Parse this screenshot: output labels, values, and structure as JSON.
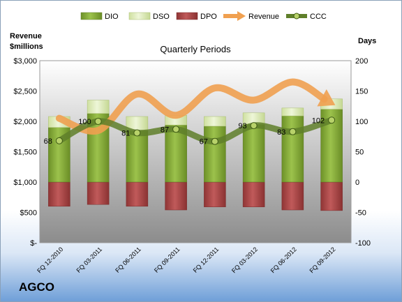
{
  "company": "AGCO",
  "chart_data": {
    "type": "bar",
    "title": "Quarterly Periods",
    "left_axis_title": [
      "Revenue",
      "$millions"
    ],
    "right_axis_title": "Days",
    "categories": [
      "FQ 12-2010",
      "FQ 03-2011",
      "FQ 06-2011",
      "FQ 09-2011",
      "FQ 12-2011",
      "FQ 03-2012",
      "FQ 06-2012",
      "FQ 09-2012"
    ],
    "left_ticks": [
      "$-",
      "$500",
      "$1,000",
      "$1,500",
      "$2,000",
      "$2,500",
      "$3,000"
    ],
    "right_ticks": [
      "-100",
      "-50",
      "0",
      "50",
      "100",
      "150",
      "200"
    ],
    "ylim_days": [
      -100,
      200
    ],
    "ylim_revenue": [
      0,
      3000
    ],
    "series": [
      {
        "name": "DIO",
        "axis": "days",
        "values": [
          90,
          113,
          85,
          94,
          92,
          95,
          109,
          120
        ]
      },
      {
        "name": "DSO",
        "axis": "days",
        "values": [
          18,
          22,
          23,
          16,
          16,
          19,
          13,
          17
        ]
      },
      {
        "name": "DPO",
        "axis": "days",
        "values": [
          -40,
          -37,
          -40,
          -46,
          -41,
          -41,
          -46,
          -47
        ]
      },
      {
        "name": "Revenue",
        "axis": "revenue",
        "values": [
          2050,
          1850,
          2450,
          2100,
          2550,
          2350,
          2650,
          2300
        ]
      },
      {
        "name": "CCC",
        "axis": "days",
        "values": [
          68,
          100,
          81,
          87,
          67,
          93,
          83,
          102
        ]
      }
    ],
    "legend_position": "top",
    "colors": {
      "DIO": "#8cb33f",
      "DSO": "#e3efc3",
      "DPO": "#b04a4a",
      "Revenue": "#f0a050",
      "CCC": "#5f7f2a",
      "plot_bg_top": "#ffffff",
      "plot_bg_bottom": "#8c8c8c"
    }
  }
}
